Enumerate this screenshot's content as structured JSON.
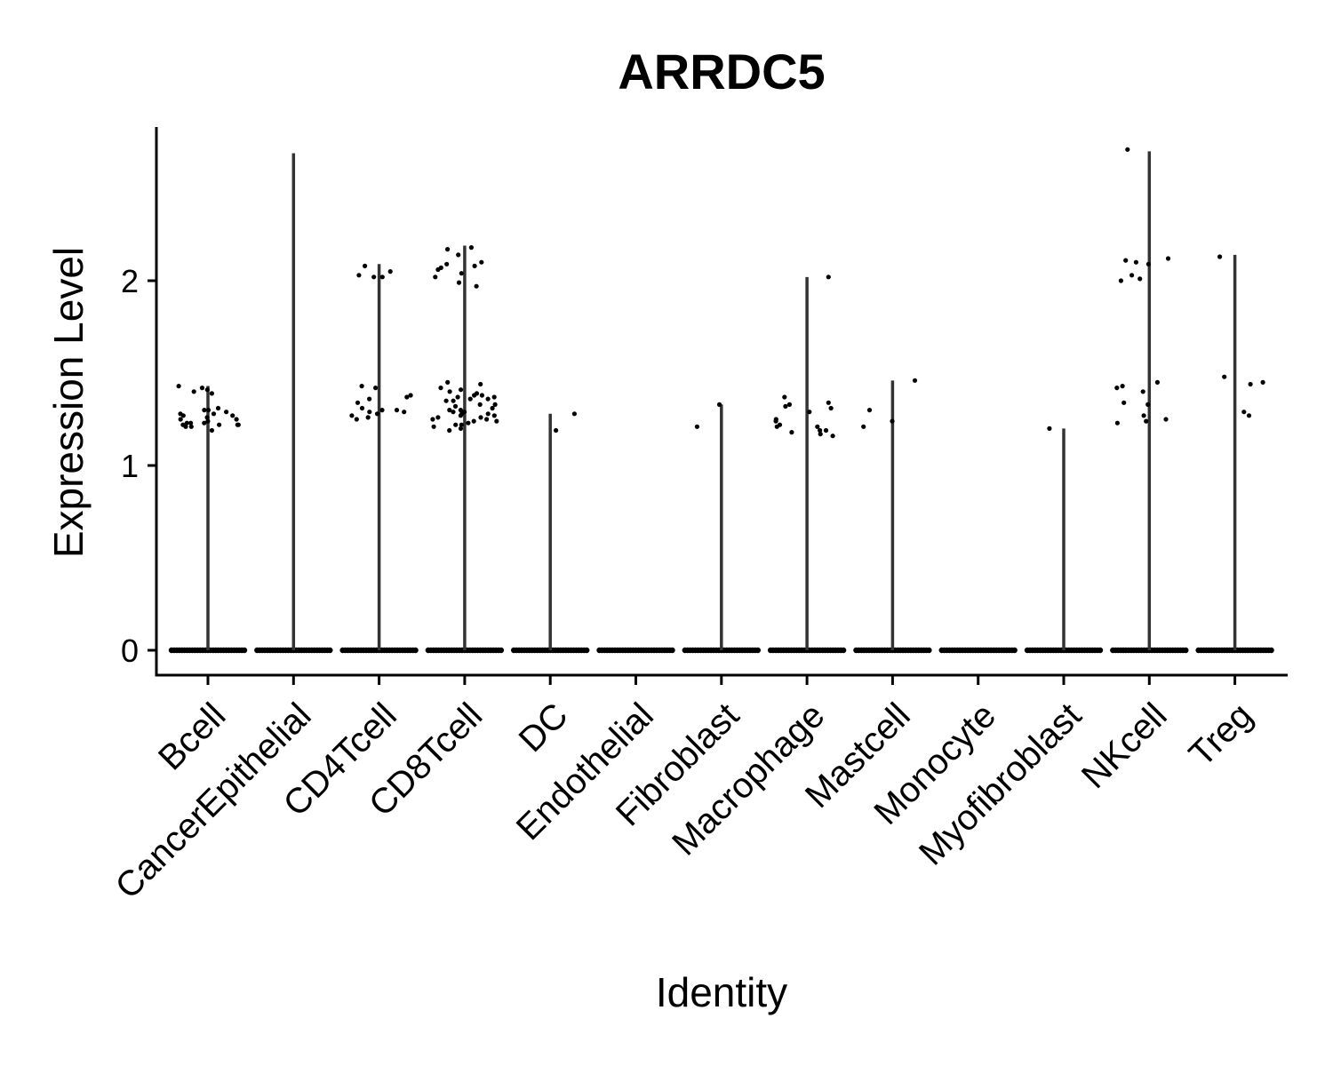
{
  "chart_data": {
    "type": "violin",
    "title": "ARRDC5",
    "xlabel": "Identity",
    "ylabel": "Expression Level",
    "ylim": [
      -0.13,
      2.85
    ],
    "yticks": [
      0,
      1,
      2
    ],
    "grid": false,
    "legend": "none",
    "categories": [
      "Bcell",
      "CancerEpithelial",
      "CD4Tcell",
      "CD8Tcell",
      "DC",
      "Endothelial",
      "Fibroblast",
      "Macrophage",
      "Mastcell",
      "Monocyte",
      "Myofibroblast",
      "NKcell",
      "Treg"
    ],
    "violin_max": [
      1.43,
      2.69,
      2.09,
      2.19,
      1.28,
      0,
      1.33,
      2.02,
      1.46,
      0,
      1.2,
      2.7,
      2.14
    ],
    "points": [
      [
        1.41,
        1.39,
        1.22,
        1.21,
        1.23,
        1.3,
        1.25,
        1.27,
        1.28,
        1.42,
        1.4,
        1.29,
        1.31,
        1.28,
        1.24,
        1.23,
        1.22,
        1.21,
        1.19,
        1.26,
        1.23,
        1.43,
        1.25,
        1.22,
        1.27,
        1.3,
        1.22
      ],
      [],
      [
        2.03,
        2.02,
        2.02,
        2.05,
        2.08,
        1.34,
        1.38,
        1.42,
        1.43,
        1.3,
        1.26,
        1.25,
        1.3,
        1.29,
        1.36,
        1.27,
        1.37,
        1.31,
        1.29,
        1.28
      ],
      [
        2.17,
        2.18,
        2.14,
        2.1,
        2.08,
        2.07,
        2.09,
        2.04,
        2.06,
        2.02,
        1.99,
        1.97,
        1.38,
        1.37,
        1.35,
        1.3,
        1.29,
        1.27,
        1.25,
        1.22,
        1.2,
        1.19,
        1.45,
        1.44,
        1.42,
        1.4,
        1.38,
        1.36,
        1.33,
        1.31,
        1.28,
        1.26,
        1.24,
        1.23,
        1.21,
        1.29,
        1.32,
        1.35,
        1.37,
        1.39,
        1.33,
        1.3,
        1.27,
        1.25,
        1.22,
        1.36,
        1.41,
        1.26,
        1.24,
        1.28
      ],
      [
        1.28,
        1.19
      ],
      [],
      [
        1.33,
        1.21
      ],
      [
        1.19,
        1.16,
        1.18,
        1.25,
        1.37,
        1.17,
        1.19,
        1.21,
        1.31,
        1.33,
        1.34,
        1.32,
        1.21,
        1.22,
        1.24,
        1.29,
        2.02
      ],
      [
        1.46,
        1.3,
        1.24,
        1.21
      ],
      [],
      [
        1.2
      ],
      [
        2.09,
        2.0,
        2.01,
        2.03,
        2.1,
        2.12,
        2.11,
        2.71,
        1.42,
        1.45,
        1.43,
        1.4,
        1.34,
        1.33,
        1.27,
        1.23,
        1.25,
        1.24
      ],
      [
        1.44,
        1.48,
        1.45,
        1.27,
        1.29,
        2.13
      ]
    ]
  }
}
